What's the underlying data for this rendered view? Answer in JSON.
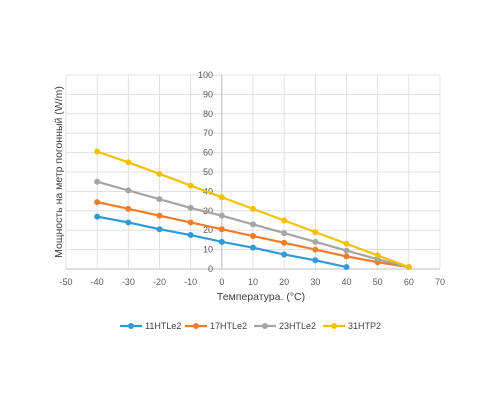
{
  "chart_data": {
    "type": "line",
    "xlabel": "Температура. (°C)",
    "ylabel": "Мощность на метр погонный (W/m)",
    "xlim": [
      -50,
      70
    ],
    "ylim": [
      0,
      100
    ],
    "x_ticks": [
      -50,
      -40,
      -30,
      -20,
      -10,
      0,
      10,
      20,
      30,
      40,
      50,
      60,
      70
    ],
    "y_ticks": [
      0,
      10,
      20,
      30,
      40,
      50,
      60,
      70,
      80,
      90,
      100
    ],
    "grid": "vertical and horizontal",
    "legend_position": "bottom",
    "series": [
      {
        "name": "11HTLe2",
        "color": "#2f9ad6",
        "x": [
          -40,
          -30,
          -20,
          -10,
          0,
          10,
          20,
          30,
          40
        ],
        "values": [
          27,
          24,
          20.5,
          17.5,
          14,
          11,
          7.5,
          4.5,
          1
        ]
      },
      {
        "name": "17HTLe2",
        "color": "#f07c2a",
        "x": [
          -40,
          -30,
          -20,
          -10,
          0,
          10,
          20,
          30,
          40,
          50,
          60
        ],
        "values": [
          34.5,
          31,
          27.5,
          24,
          20.5,
          17,
          13.5,
          10,
          6.5,
          3.5,
          1
        ]
      },
      {
        "name": "23HTLe2",
        "color": "#a5a5a5",
        "x": [
          -40,
          -30,
          -20,
          -10,
          0,
          10,
          20,
          30,
          40,
          50,
          60
        ],
        "values": [
          45,
          40.5,
          36,
          31.5,
          27.5,
          23,
          18.5,
          14,
          9.5,
          5,
          1
        ]
      },
      {
        "name": "31HTP2",
        "color": "#f5c000",
        "x": [
          -40,
          -30,
          -20,
          -10,
          0,
          10,
          20,
          30,
          40,
          50,
          60
        ],
        "values": [
          60.5,
          55,
          49,
          43,
          37,
          31,
          25,
          19,
          13,
          7,
          1
        ]
      }
    ]
  }
}
